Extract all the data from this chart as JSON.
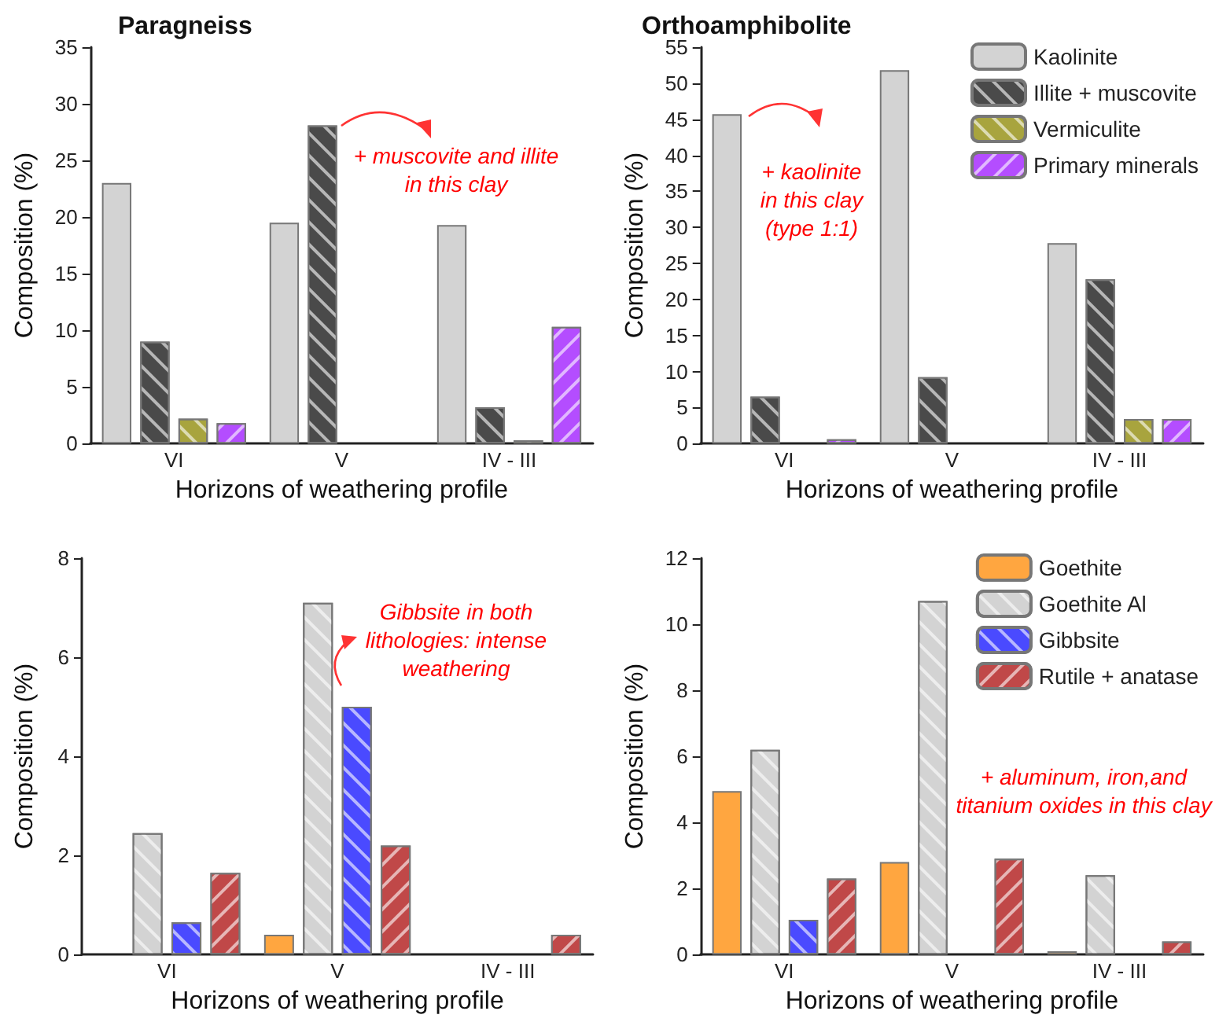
{
  "chart_data": [
    {
      "type": "bar",
      "title": "Paragneiss",
      "xlabel": "Horizons of weathering profile",
      "ylabel": "Composition (%)",
      "categories": [
        "VI",
        "V",
        "IV - III"
      ],
      "ylim": [
        0,
        35
      ],
      "yticks": [
        0,
        5,
        10,
        15,
        20,
        25,
        30,
        35
      ],
      "legend": false,
      "annotations": [
        {
          "text": "+ muscovite and illite\nin this clay",
          "x": "V",
          "y": 28.1
        }
      ],
      "series": [
        {
          "color": "#d3d3d3",
          "values": [
            23,
            19.5,
            19.3
          ]
        },
        {
          "color": "#4a4a4a",
          "values": [
            9,
            28.1,
            3.2
          ]
        },
        {
          "color": "#a8a43e",
          "values": [
            2.2,
            null,
            0.3
          ]
        },
        {
          "color": "#b44dff",
          "values": [
            1.8,
            null,
            10.3
          ]
        }
      ]
    },
    {
      "type": "bar",
      "title": "Orthoamphibolite",
      "xlabel": "Horizons of weathering profile",
      "ylabel": "Composition (%)",
      "categories": [
        "VI",
        "V",
        "IV - III"
      ],
      "ylim": [
        0,
        55
      ],
      "yticks": [
        0,
        5,
        10,
        15,
        20,
        25,
        30,
        35,
        40,
        45,
        50,
        55
      ],
      "legend": "top right",
      "annotations": [
        "+ kaolinite\nin this clay\n(type 1:1)"
      ],
      "series": [
        {
          "name": "Kaolinite",
          "color": "#d3d3d3",
          "values": [
            45.7,
            51.8,
            27.8
          ]
        },
        {
          "name": "Illite + muscovite",
          "color": "#4a4a4a",
          "values": [
            6.5,
            9.2,
            22.8
          ]
        },
        {
          "name": "Vermiculite",
          "color": "#a8a43e",
          "values": [
            null,
            null,
            3.4
          ]
        },
        {
          "name": "Primary minerals",
          "color": "#b44dff",
          "values": [
            0.6,
            null,
            3.4
          ]
        }
      ]
    },
    {
      "type": "bar",
      "xlabel": "Horizons of weathering profile",
      "ylabel": "Composition (%)",
      "categories": [
        "VI",
        "V",
        "IV - III"
      ],
      "ylim": [
        0,
        8
      ],
      "yticks": [
        0,
        2,
        4,
        6,
        8
      ],
      "legend": false,
      "annotations": [
        "Gibbsite in both\nlithologies: intense\nweathering"
      ],
      "series": [
        {
          "color": "#ffa640",
          "values": [
            null,
            0.4,
            null
          ]
        },
        {
          "color": "#d3d3d3",
          "values": [
            2.45,
            7.1,
            null
          ]
        },
        {
          "color": "#4a4aff",
          "values": [
            0.65,
            5.0,
            null
          ]
        },
        {
          "color": "#c04848",
          "values": [
            1.65,
            2.2,
            0.4
          ]
        }
      ]
    },
    {
      "type": "bar",
      "xlabel": "Horizons of weathering profile",
      "ylabel": "Composition (%)",
      "categories": [
        "VI",
        "V",
        "IV - III"
      ],
      "ylim": [
        0,
        12
      ],
      "yticks": [
        0,
        2,
        4,
        6,
        8,
        10,
        12
      ],
      "legend": "top right",
      "annotations": [
        "+ aluminum, iron,and\ntitanium oxides in this clay"
      ],
      "series": [
        {
          "name": "Goethite",
          "color": "#ffa640",
          "values": [
            4.95,
            2.8,
            0.1
          ]
        },
        {
          "name": "Goethite Al",
          "color": "#d3d3d3",
          "values": [
            6.2,
            10.7,
            2.4
          ]
        },
        {
          "name": "Gibbsite",
          "color": "#4a4aff",
          "values": [
            1.05,
            null,
            null
          ]
        },
        {
          "name": "Rutile + anatase",
          "color": "#c04848",
          "values": [
            2.3,
            2.9,
            0.4
          ]
        }
      ]
    }
  ]
}
